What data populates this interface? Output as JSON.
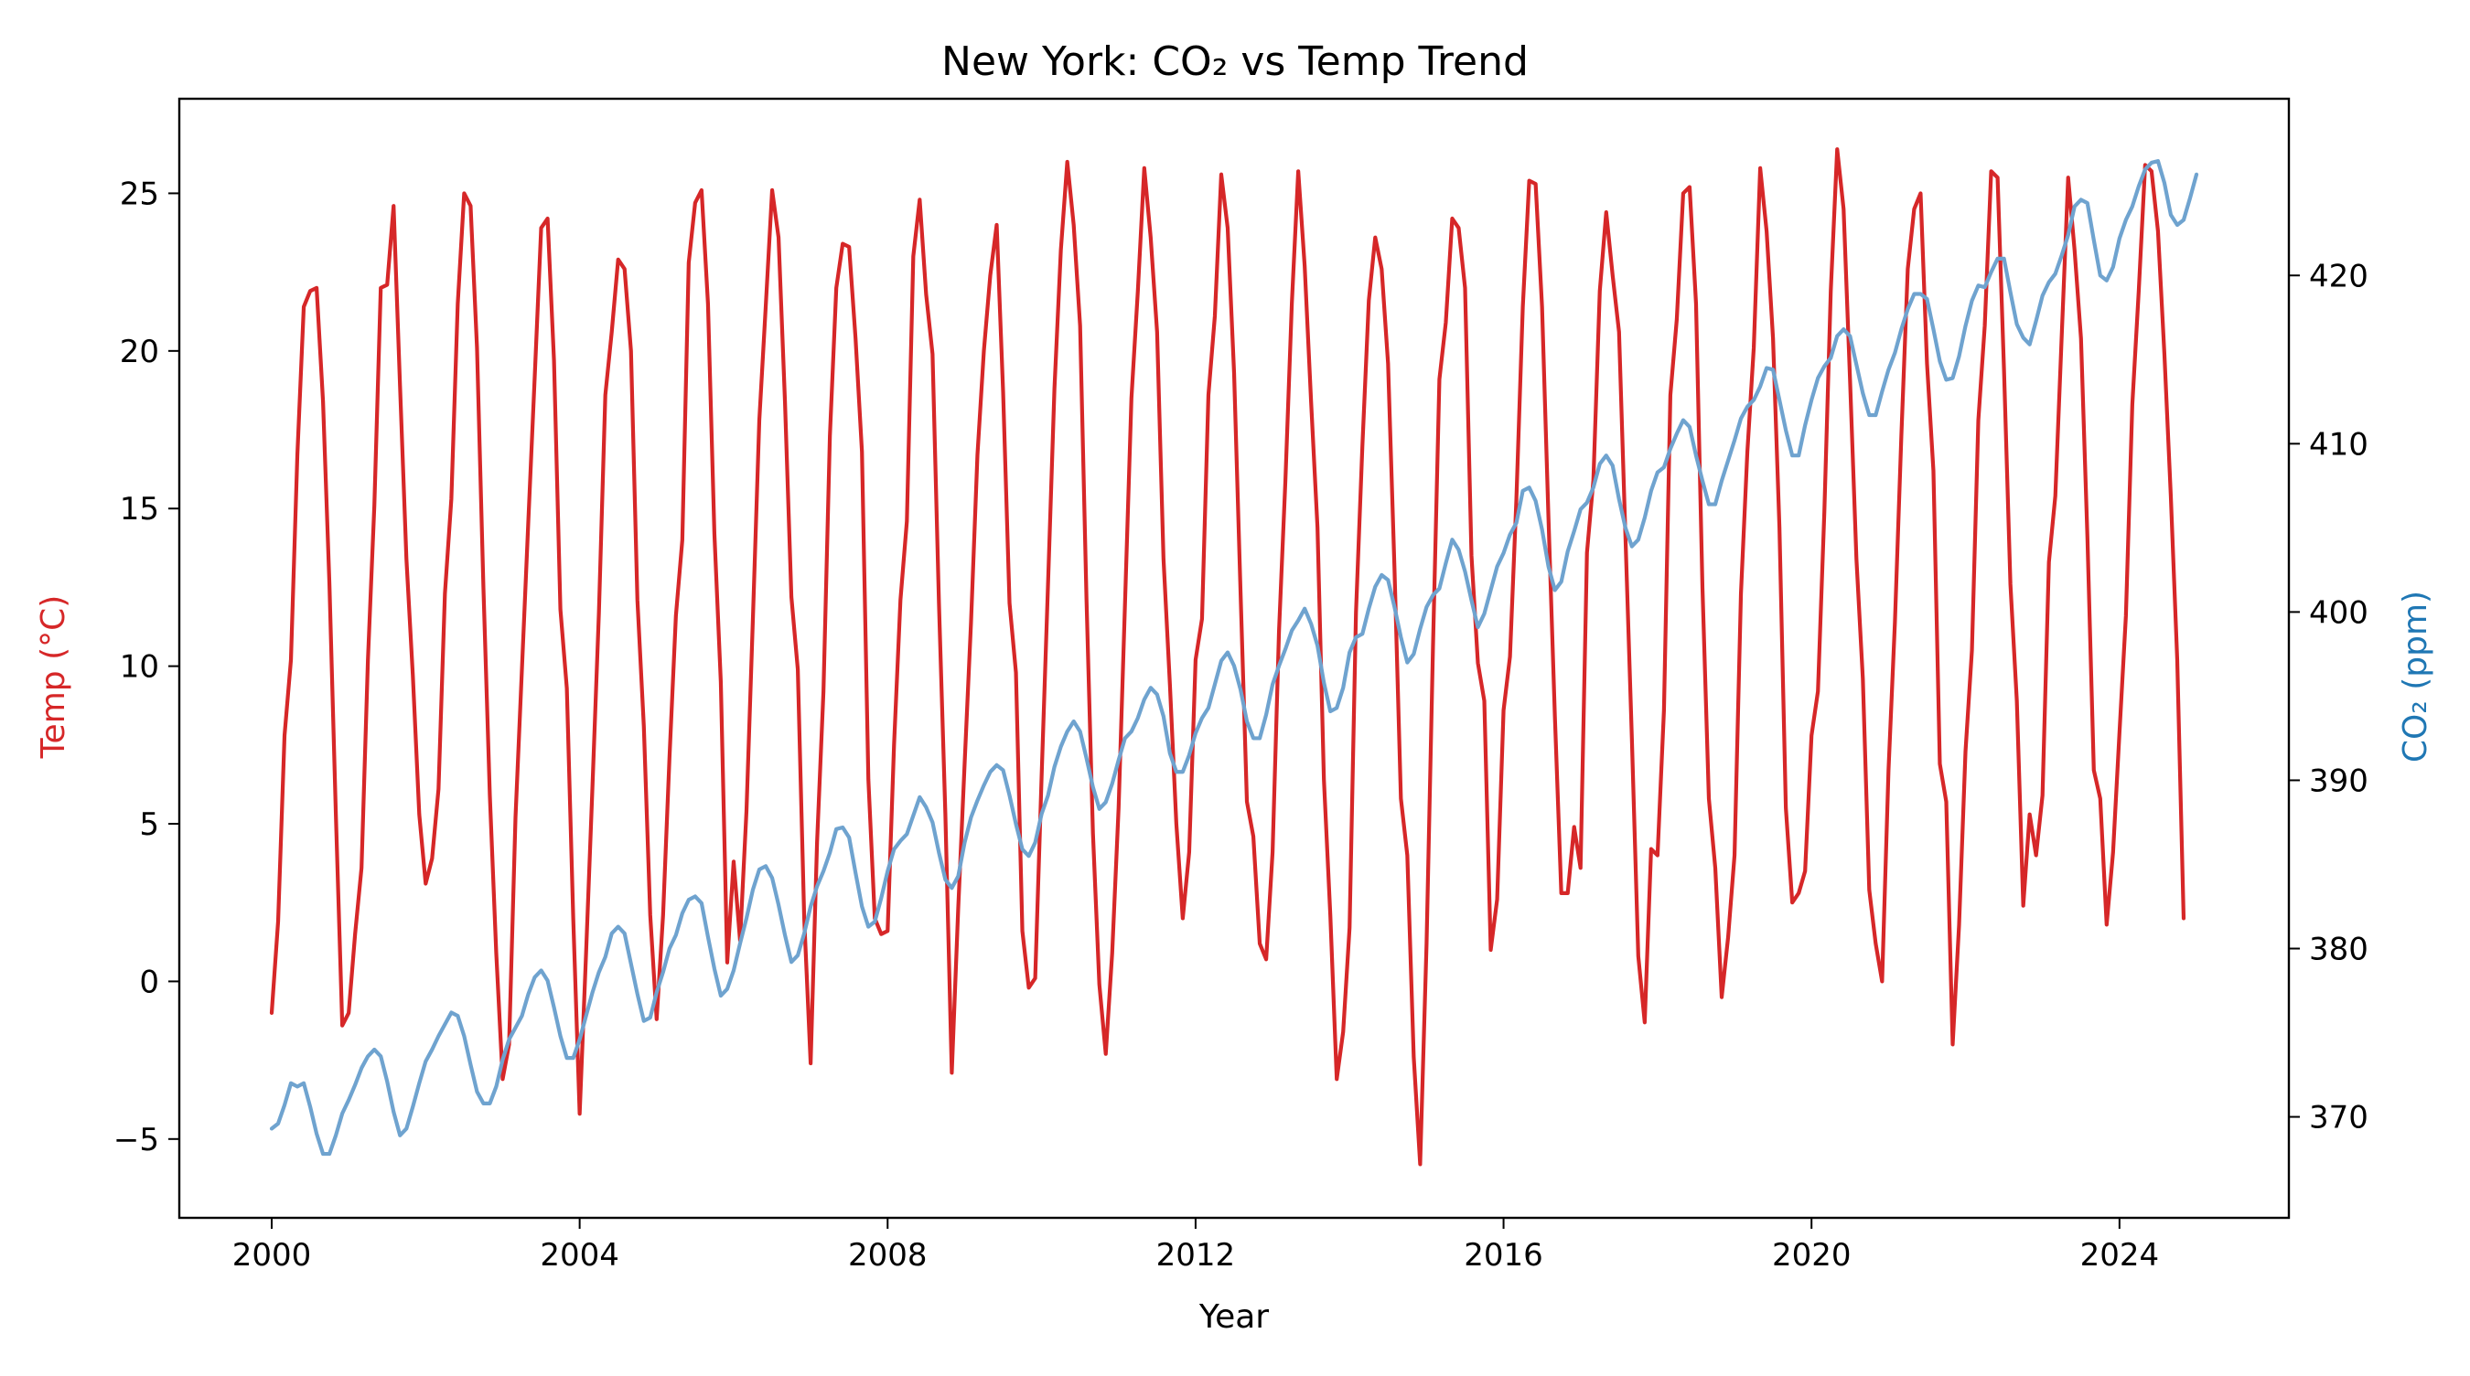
{
  "chart_data": {
    "type": "line",
    "title": "New York: CO₂ vs Temp Trend",
    "xlabel": "Year",
    "ylabel_left": "Temp (°C)",
    "ylabel_right": "CO₂ (ppm)",
    "xlim": [
      1998.8,
      2026.2
    ],
    "ylim_left": [
      -7.5,
      28.0
    ],
    "ylim_right": [
      364.0,
      430.5
    ],
    "x_ticks": [
      2000,
      2004,
      2008,
      2012,
      2016,
      2020,
      2024
    ],
    "x_tick_labels": [
      "2000",
      "2004",
      "2008",
      "2012",
      "2016",
      "2020",
      "2024"
    ],
    "y_left_ticks": [
      -5,
      0,
      5,
      10,
      15,
      20,
      25
    ],
    "y_left_tick_labels": [
      "−5",
      "0",
      "5",
      "10",
      "15",
      "20",
      "25"
    ],
    "y_right_ticks": [
      370,
      380,
      390,
      400,
      410,
      420
    ],
    "y_right_tick_labels": [
      "370",
      "380",
      "390",
      "400",
      "410",
      "420"
    ],
    "grid": false,
    "series_axis": [
      "left",
      "right"
    ],
    "series_colors": [
      "#d62728",
      "#6fa3cf"
    ],
    "x_start_year": 2000,
    "x_step_months": 1,
    "series": [
      {
        "values": [
          -1.0,
          1.9,
          7.8,
          10.2,
          16.7,
          21.4,
          21.9,
          22.0,
          18.4,
          12.6,
          5.3,
          -1.4,
          -1.0,
          1.5,
          3.6,
          10.2,
          15.1,
          22.0,
          22.1,
          24.6,
          18.9,
          13.4,
          9.7,
          5.3,
          3.1,
          3.9,
          6.1,
          12.3,
          15.3,
          21.5,
          25.0,
          24.6,
          20.1,
          12.5,
          5.9,
          0.9,
          -3.1,
          -2.0,
          5.2,
          9.9,
          14.6,
          19.2,
          23.9,
          24.2,
          19.7,
          11.8,
          9.3,
          2.0,
          -4.2,
          0.9,
          6.2,
          11.7,
          18.6,
          20.6,
          22.9,
          22.6,
          20.0,
          12.1,
          8.1,
          2.1,
          -1.2,
          2.1,
          7.1,
          11.6,
          14.0,
          22.8,
          24.7,
          25.1,
          21.5,
          14.2,
          9.5,
          0.6,
          3.8,
          1.3,
          5.4,
          11.5,
          17.8,
          21.4,
          25.1,
          23.6,
          18.4,
          12.2,
          9.9,
          2.0,
          -2.6,
          4.4,
          9.2,
          17.3,
          22.0,
          23.4,
          23.3,
          20.4,
          16.8,
          6.4,
          2.0,
          1.5,
          1.6,
          7.5,
          12.1,
          14.6,
          23.0,
          24.8,
          21.8,
          19.9,
          12.0,
          5.3,
          -2.9,
          2.3,
          6.9,
          11.4,
          16.7,
          20.0,
          22.4,
          24.0,
          18.7,
          12.0,
          9.8,
          1.6,
          -0.2,
          0.1,
          6.5,
          12.6,
          18.8,
          23.2,
          26.0,
          24.0,
          20.8,
          12.1,
          4.7,
          -0.1,
          -2.3,
          0.9,
          5.5,
          12.0,
          18.5,
          21.9,
          25.8,
          23.6,
          20.6,
          13.4,
          9.4,
          5.0,
          2.0,
          4.1,
          10.2,
          11.5,
          18.6,
          21.1,
          25.6,
          23.9,
          19.3,
          12.4,
          5.7,
          4.6,
          1.2,
          0.7,
          4.1,
          11.1,
          15.9,
          21.5,
          25.7,
          22.7,
          18.4,
          14.4,
          6.4,
          2.1,
          -3.1,
          -1.6,
          1.7,
          11.7,
          17.0,
          21.6,
          23.6,
          22.6,
          19.6,
          13.1,
          5.8,
          4.0,
          -2.4,
          -5.8,
          1.2,
          10.6,
          19.1,
          20.9,
          24.2,
          23.9,
          22.0,
          13.5,
          10.1,
          8.9,
          1.0,
          2.6,
          8.6,
          10.3,
          15.3,
          21.4,
          25.4,
          25.3,
          21.4,
          14.7,
          8.4,
          2.8,
          2.8,
          4.9,
          3.6,
          13.6,
          15.9,
          21.9,
          24.4,
          22.4,
          20.6,
          14.1,
          7.7,
          0.8,
          -1.3,
          4.2,
          4.0,
          8.6,
          18.6,
          21.0,
          25.0,
          25.2,
          21.5,
          12.5,
          5.8,
          3.6,
          -0.5,
          1.4,
          4.0,
          12.3,
          16.8,
          20.1,
          25.8,
          23.8,
          20.4,
          14.4,
          5.5,
          2.5,
          2.8,
          3.5,
          7.8,
          9.2,
          14.9,
          21.9,
          26.4,
          24.5,
          19.1,
          13.4,
          9.6,
          2.9,
          1.2,
          0.0,
          6.7,
          11.4,
          17.3,
          22.6,
          24.5,
          25.0,
          19.6,
          16.2,
          6.9,
          5.7,
          -2.0,
          1.8,
          7.3,
          10.5,
          17.8,
          20.8,
          25.7,
          25.5,
          19.4,
          12.6,
          8.9,
          2.4,
          5.3,
          4.0,
          5.9,
          13.3,
          15.4,
          20.5,
          25.5,
          23.2,
          20.4,
          14.1,
          6.7,
          5.8,
          1.8,
          4.1,
          7.9,
          11.6,
          18.3,
          21.9,
          25.9,
          25.7,
          23.8,
          19.9,
          15.4,
          10.2,
          2.0
        ]
      },
      {
        "values": [
          369.3,
          369.6,
          370.7,
          372.0,
          371.8,
          372.0,
          370.6,
          369.0,
          367.8,
          367.8,
          368.9,
          370.2,
          371.0,
          371.9,
          372.9,
          373.6,
          374.0,
          373.6,
          372.1,
          370.3,
          368.9,
          369.3,
          370.6,
          372.0,
          373.3,
          374.0,
          374.8,
          375.5,
          376.2,
          376.0,
          374.8,
          373.1,
          371.5,
          370.8,
          370.8,
          371.8,
          373.4,
          374.6,
          375.3,
          376.0,
          377.3,
          378.3,
          378.7,
          378.1,
          376.5,
          374.8,
          373.5,
          373.5,
          374.6,
          376.0,
          377.4,
          378.6,
          379.5,
          380.9,
          381.3,
          380.9,
          379.1,
          377.3,
          375.7,
          375.9,
          377.4,
          378.6,
          380.0,
          380.8,
          382.1,
          382.9,
          383.1,
          382.7,
          380.7,
          378.8,
          377.2,
          377.6,
          378.7,
          380.3,
          381.8,
          383.5,
          384.7,
          384.9,
          384.2,
          382.6,
          380.8,
          379.2,
          379.6,
          380.9,
          382.5,
          383.7,
          384.6,
          385.7,
          387.1,
          387.2,
          386.6,
          384.5,
          382.5,
          381.3,
          381.6,
          383.0,
          384.6,
          385.9,
          386.4,
          386.8,
          387.9,
          389.0,
          388.4,
          387.5,
          385.7,
          384.1,
          383.6,
          384.3,
          386.3,
          387.8,
          388.8,
          389.7,
          390.5,
          390.9,
          390.6,
          389.1,
          387.4,
          385.9,
          385.5,
          386.3,
          388.0,
          389.1,
          390.8,
          392.0,
          392.9,
          393.5,
          392.9,
          391.3,
          389.6,
          388.3,
          388.7,
          389.8,
          391.2,
          392.5,
          392.9,
          393.7,
          394.8,
          395.5,
          395.1,
          393.8,
          391.6,
          390.5,
          390.5,
          391.5,
          392.8,
          393.7,
          394.3,
          395.7,
          397.1,
          397.6,
          396.8,
          395.4,
          393.5,
          392.5,
          392.5,
          393.9,
          395.7,
          396.8,
          397.8,
          398.9,
          399.5,
          400.2,
          399.3,
          398.0,
          395.8,
          394.1,
          394.3,
          395.5,
          397.6,
          398.5,
          398.7,
          400.2,
          401.5,
          402.2,
          401.9,
          400.3,
          398.5,
          397.0,
          397.5,
          399.0,
          400.3,
          401.0,
          401.4,
          402.9,
          404.3,
          403.7,
          402.4,
          400.7,
          399.1,
          399.9,
          401.3,
          402.7,
          403.5,
          404.6,
          405.3,
          407.2,
          407.4,
          406.6,
          404.9,
          402.7,
          401.3,
          401.8,
          403.6,
          404.8,
          406.1,
          406.5,
          407.4,
          408.8,
          409.3,
          408.7,
          406.7,
          405.0,
          403.9,
          404.3,
          405.6,
          407.2,
          408.3,
          408.6,
          409.7,
          410.6,
          411.4,
          411.0,
          409.3,
          407.8,
          406.4,
          406.4,
          407.8,
          409.0,
          410.2,
          411.5,
          412.2,
          412.6,
          413.4,
          414.5,
          414.4,
          412.6,
          410.8,
          409.3,
          409.3,
          411.1,
          412.6,
          413.9,
          414.6,
          415.1,
          416.4,
          416.8,
          416.4,
          414.7,
          413.0,
          411.7,
          411.7,
          413.1,
          414.4,
          415.4,
          416.8,
          418.0,
          418.9,
          418.9,
          418.6,
          416.8,
          414.9,
          413.8,
          413.9,
          415.2,
          417.0,
          418.5,
          419.4,
          419.3,
          420.2,
          421.0,
          421.0,
          419.0,
          417.1,
          416.3,
          415.9,
          417.3,
          418.8,
          419.6,
          420.1,
          421.2,
          422.4,
          424.1,
          424.5,
          424.3,
          422.1,
          420.0,
          419.7,
          420.5,
          422.2,
          423.3,
          424.1,
          425.3,
          426.3,
          426.7,
          426.8,
          425.5,
          423.6,
          423.0,
          423.3,
          424.6,
          426.0
        ]
      }
    ]
  }
}
